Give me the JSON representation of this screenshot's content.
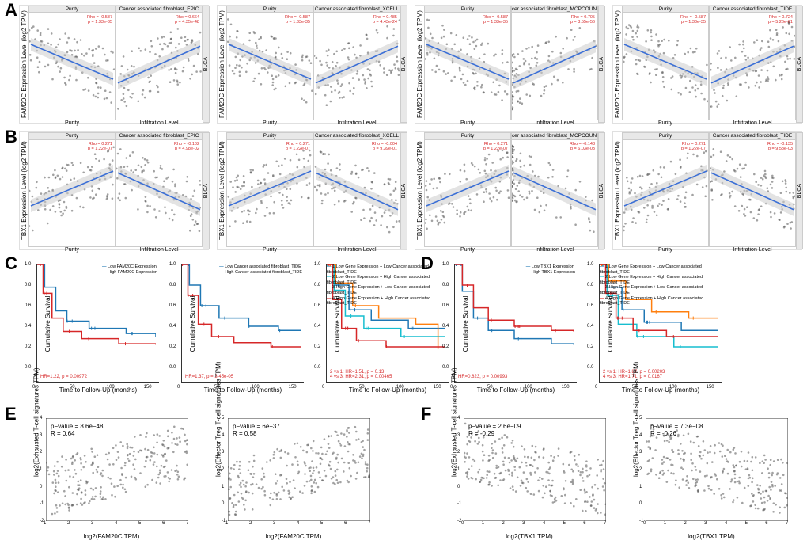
{
  "colors": {
    "trend_line": "#3b6fd6",
    "ci_band": "#cccccc",
    "point": "#555555",
    "text_red": "#d62728",
    "km_low": "#1f77b4",
    "km_high": "#d62728",
    "km_orange": "#ff7f0e",
    "km_cyan": "#17becf",
    "km_darkred": "#8b0000",
    "bg": "#ffffff",
    "strip_bg": "#e8e8e8",
    "border": "#cccccc"
  },
  "typography": {
    "label_fontsize": 8,
    "panel_letter_fontsize": 22,
    "stat_fontsize": 6
  },
  "A": {
    "ylabel": "FAM20C Expression Level (log2 TPM)",
    "strip_label": "BLCA",
    "common_purity": {
      "title": "Purity",
      "rho": -0.587,
      "p": "1.33e-35",
      "xlim": [
        0,
        1
      ],
      "xticks": [
        0.25,
        0.5,
        0.75,
        1.0
      ]
    },
    "ylim": [
      2,
      8
    ],
    "yticks": [
      2,
      4,
      6,
      8
    ],
    "panels": [
      {
        "title": "Cancer associated fibroblast_EPIC",
        "rho": 0.664,
        "p": "4.35e-48",
        "xlim": [
          0,
          1
        ],
        "xticks": [
          0.25,
          0.5,
          0.75,
          1.0
        ],
        "slope": 1
      },
      {
        "title": "Cancer associated fibroblast_XCELL",
        "rho": 0.485,
        "p": "4.43e-24",
        "xlim": [
          0,
          1
        ],
        "xticks": [
          0.25,
          0.5,
          0.75,
          1.0
        ],
        "slope": 1
      },
      {
        "title": "ancer associated fibroblast_MCPCOUNTE",
        "rho": 0.705,
        "p": "3.55e-56",
        "xlim": [
          0,
          60000
        ],
        "xticks": [
          20000,
          40000,
          60000
        ],
        "slope": 1
      },
      {
        "title": "Cancer associated fibroblast_TIDE",
        "rho": 0.724,
        "p": "5.26e-61",
        "xlim": [
          -2,
          2
        ],
        "xticks": [
          -1,
          0,
          1,
          2
        ],
        "slope": 1
      }
    ]
  },
  "B": {
    "ylabel": "TBX1 Expression Level (log2 TPM)",
    "strip_label": "BLCA",
    "common_purity": {
      "title": "Purity",
      "rho": 0.271,
      "p": "1.22e-07",
      "xlim": [
        0,
        1
      ],
      "xticks": [
        0.25,
        0.5,
        0.75,
        1.0
      ]
    },
    "ylim": [
      0,
      6
    ],
    "yticks": [
      0,
      2,
      4,
      6
    ],
    "panels": [
      {
        "title": "Cancer associated fibroblast_EPIC",
        "rho": -0.102,
        "p": "4.98e-02",
        "xlim": [
          0,
          1
        ],
        "xticks": [
          0.25,
          0.5,
          0.75,
          1.0
        ],
        "slope": -1
      },
      {
        "title": "Cancer associated fibroblast_XCELL",
        "rho": -0.004,
        "p": "9.39e-01",
        "xlim": [
          0,
          1
        ],
        "xticks": [
          0.25,
          0.5,
          0.75,
          1.0
        ],
        "slope": -0.1
      },
      {
        "title": "ancer associated fibroblast_MCPCOUNTE",
        "rho": -0.143,
        "p": "6.03e-03",
        "xlim": [
          0,
          60000
        ],
        "xticks": [
          20000,
          40000,
          60000
        ],
        "slope": -1
      },
      {
        "title": "Cancer associated fibroblast_TIDE",
        "rho": -0.135,
        "p": "9.58e-03",
        "xlim": [
          -2,
          2
        ],
        "xticks": [
          -1,
          0,
          1,
          2
        ],
        "slope": -1
      }
    ]
  },
  "C": {
    "ylabel": "Cumulative Survival",
    "xlabel": "Time to Follow-Up (months)",
    "xlim": [
      0,
      160
    ],
    "ylim": [
      0,
      1
    ],
    "panels": [
      {
        "type": "2line",
        "legend": [
          "Low FAM20C Expression",
          "High FAM20C Expression"
        ],
        "legend_colors": [
          "#1f77b4",
          "#d62728"
        ],
        "hr": "HR=1.22, p = 0.00972",
        "curves": [
          {
            "color": "#1f77b4",
            "pts": [
              [
                0,
                1
              ],
              [
                10,
                0.78
              ],
              [
                25,
                0.55
              ],
              [
                40,
                0.45
              ],
              [
                70,
                0.38
              ],
              [
                120,
                0.33
              ],
              [
                160,
                0.3
              ]
            ]
          },
          {
            "color": "#d62728",
            "pts": [
              [
                0,
                1
              ],
              [
                8,
                0.72
              ],
              [
                20,
                0.48
              ],
              [
                35,
                0.35
              ],
              [
                60,
                0.28
              ],
              [
                110,
                0.23
              ],
              [
                160,
                0.22
              ]
            ]
          }
        ]
      },
      {
        "type": "2line",
        "legend": [
          "Low Cancer associated fibroblast_TIDE",
          "High Cancer associated fibroblast_TIDE"
        ],
        "legend_colors": [
          "#1f77b4",
          "#d62728"
        ],
        "hr": "HR=1.37, p = 3.45e-05",
        "curves": [
          {
            "color": "#1f77b4",
            "pts": [
              [
                0,
                1
              ],
              [
                10,
                0.8
              ],
              [
                25,
                0.6
              ],
              [
                50,
                0.48
              ],
              [
                90,
                0.4
              ],
              [
                130,
                0.36
              ],
              [
                160,
                0.36
              ]
            ]
          },
          {
            "color": "#d62728",
            "pts": [
              [
                0,
                1
              ],
              [
                8,
                0.7
              ],
              [
                22,
                0.42
              ],
              [
                40,
                0.3
              ],
              [
                70,
                0.24
              ],
              [
                120,
                0.2
              ],
              [
                160,
                0.2
              ]
            ]
          }
        ]
      },
      {
        "type": "4line",
        "legend": [
          "1.Low Gene Expression + Low Cancer associated fibroblast_TIDE",
          "2.Low Gene Expression + High Cancer associated fibroblast_TIDE",
          "3.High Gene Expression + Low Cancer associated fibroblast_TIDE",
          "4.High Gene Expression + High Cancer associated fibroblast_TIDE"
        ],
        "legend_colors": [
          "#1f77b4",
          "#17becf",
          "#ff7f0e",
          "#d62728"
        ],
        "hr": "2 vs 1: HR=1.51, p = 0.13\\n4 vs 3: HR=2.31, p = 0.00465",
        "curves": [
          {
            "color": "#1f77b4",
            "pts": [
              [
                0,
                1
              ],
              [
                10,
                0.8
              ],
              [
                30,
                0.56
              ],
              [
                60,
                0.46
              ],
              [
                110,
                0.38
              ],
              [
                160,
                0.36
              ]
            ]
          },
          {
            "color": "#17becf",
            "pts": [
              [
                0,
                1
              ],
              [
                10,
                0.75
              ],
              [
                25,
                0.5
              ],
              [
                50,
                0.38
              ],
              [
                100,
                0.3
              ],
              [
                160,
                0.28
              ]
            ]
          },
          {
            "color": "#ff7f0e",
            "pts": [
              [
                0,
                1
              ],
              [
                12,
                0.82
              ],
              [
                35,
                0.6
              ],
              [
                70,
                0.48
              ],
              [
                120,
                0.42
              ],
              [
                150,
                0.18
              ]
            ]
          },
          {
            "color": "#d62728",
            "pts": [
              [
                0,
                1
              ],
              [
                8,
                0.66
              ],
              [
                20,
                0.38
              ],
              [
                40,
                0.26
              ],
              [
                80,
                0.2
              ],
              [
                160,
                0.18
              ]
            ]
          }
        ]
      }
    ]
  },
  "D": {
    "ylabel": "Cumulative Survival",
    "xlabel": "Time to Follow-Up (months)",
    "xlim": [
      0,
      160
    ],
    "ylim": [
      0,
      1
    ],
    "panels": [
      {
        "type": "2line",
        "legend": [
          "Low TBX1 Expression",
          "High TBX1 Expression"
        ],
        "legend_colors": [
          "#1f77b4",
          "#d62728"
        ],
        "hr": "HR=0.823, p = 0.00993",
        "curves": [
          {
            "color": "#1f77b4",
            "pts": [
              [
                0,
                1
              ],
              [
                10,
                0.74
              ],
              [
                25,
                0.48
              ],
              [
                45,
                0.36
              ],
              [
                80,
                0.28
              ],
              [
                130,
                0.23
              ],
              [
                160,
                0.22
              ]
            ]
          },
          {
            "color": "#d62728",
            "pts": [
              [
                0,
                1
              ],
              [
                10,
                0.8
              ],
              [
                25,
                0.58
              ],
              [
                45,
                0.46
              ],
              [
                80,
                0.4
              ],
              [
                130,
                0.36
              ],
              [
                160,
                0.35
              ]
            ]
          }
        ]
      },
      {
        "type": "4line",
        "legend": [
          "1.Low Gene Expression + Low Cancer associated fibroblast_TIDE",
          "2.Low Gene Expression + High Cancer associated fibroblast_TIDE",
          "3.High Gene Expression + Low Cancer associated fibroblast_TIDE",
          "4.High Gene Expression + High Cancer associated fibroblast_TIDE"
        ],
        "legend_colors": [
          "#1f77b4",
          "#17becf",
          "#ff7f0e",
          "#d62728"
        ],
        "hr": "2 vs 1: HR=1.87, p = 0.00203\\n4 vs 3: HR=1.71, p = 0.0167",
        "curves": [
          {
            "color": "#1f77b4",
            "pts": [
              [
                0,
                1
              ],
              [
                10,
                0.78
              ],
              [
                30,
                0.56
              ],
              [
                60,
                0.44
              ],
              [
                110,
                0.36
              ],
              [
                160,
                0.34
              ]
            ]
          },
          {
            "color": "#17becf",
            "pts": [
              [
                0,
                1
              ],
              [
                10,
                0.7
              ],
              [
                25,
                0.42
              ],
              [
                50,
                0.3
              ],
              [
                100,
                0.2
              ],
              [
                160,
                0.18
              ]
            ]
          },
          {
            "color": "#ff7f0e",
            "pts": [
              [
                0,
                1
              ],
              [
                12,
                0.84
              ],
              [
                35,
                0.66
              ],
              [
                70,
                0.54
              ],
              [
                120,
                0.48
              ],
              [
                160,
                0.46
              ]
            ]
          },
          {
            "color": "#d62728",
            "pts": [
              [
                0,
                1
              ],
              [
                8,
                0.72
              ],
              [
                22,
                0.48
              ],
              [
                45,
                0.36
              ],
              [
                90,
                0.3
              ],
              [
                160,
                0.28
              ]
            ]
          }
        ]
      }
    ]
  },
  "E": {
    "panels": [
      {
        "p": "8.6e−48",
        "R": 0.64,
        "xlabel": "log2(FAM20C TPM)",
        "ylabel": "log2(Exhausted T-cell signatures TPM)",
        "xlim": [
          1,
          7
        ],
        "ylim": [
          -2,
          4
        ],
        "slope": 1
      },
      {
        "p": "6e−37",
        "R": 0.58,
        "xlabel": "log2(FAM20C TPM)",
        "ylabel": "log2(Effector Treg T-cell signatures TPM)",
        "xlim": [
          1,
          7
        ],
        "ylim": [
          -1,
          5
        ],
        "slope": 1
      }
    ]
  },
  "F": {
    "panels": [
      {
        "p": "2.6e−09",
        "R": -0.29,
        "xlabel": "log2(TBX1 TPM)",
        "ylabel": "log2(Exhausted T-cell signatures TPM)",
        "xlim": [
          0,
          7
        ],
        "ylim": [
          -2,
          4
        ],
        "slope": -1
      },
      {
        "p": "7.3e−08",
        "R": -0.26,
        "xlabel": "log2(TBX1 TPM)",
        "ylabel": "log2(Effector Treg T-cell signatures TPM)",
        "xlim": [
          0,
          7
        ],
        "ylim": [
          -1,
          5
        ],
        "slope": -1
      }
    ]
  }
}
